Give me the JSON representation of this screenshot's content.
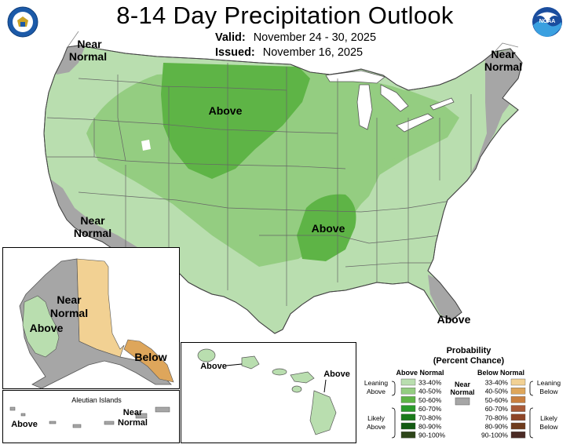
{
  "title": "8-14 Day Precipitation Outlook",
  "valid_label": "Valid:",
  "valid_value": "November 24 - 30, 2025",
  "issued_label": "Issued:",
  "issued_value": "November 16, 2025",
  "agency_logo": "DOC",
  "noaa_logo": "NOAA",
  "map_labels": {
    "nw_near_normal": [
      "Near",
      "Normal"
    ],
    "ne_near_normal": [
      "Near",
      "Normal"
    ],
    "sw_near_normal": [
      "Near",
      "Normal"
    ],
    "above_north": "Above",
    "above_south": "Above",
    "above_florida": "Above",
    "ak_near_normal": [
      "Near",
      "Normal"
    ],
    "ak_above": "Above",
    "ak_below": "Below",
    "aleutian_title": "Aleutian Islands",
    "aleutian_above": "Above",
    "aleutian_near_normal": [
      "Near",
      "Normal"
    ],
    "hawaii_above_left": "Above",
    "hawaii_above_right": "Above"
  },
  "legend": {
    "title": [
      "Probability",
      "(Percent Chance)"
    ],
    "above_header": "Above Normal",
    "below_header": "Below Normal",
    "near_label": [
      "Near",
      "Normal"
    ],
    "leaning_above": [
      "Leaning",
      "Above"
    ],
    "likely_above": [
      "Likely",
      "Above"
    ],
    "leaning_below": [
      "Leaning",
      "Below"
    ],
    "likely_below": [
      "Likely",
      "Below"
    ],
    "above_bins": [
      {
        "label": "33-40%",
        "color": "#b9deaf"
      },
      {
        "label": "40-50%",
        "color": "#94cd81"
      },
      {
        "label": "50-60%",
        "color": "#5eb446"
      },
      {
        "label": "60-70%",
        "color": "#2b9a2b"
      },
      {
        "label": "70-80%",
        "color": "#1b7a1b"
      },
      {
        "label": "80-90%",
        "color": "#125a12"
      },
      {
        "label": "90-100%",
        "color": "#2d4519"
      }
    ],
    "below_bins": [
      {
        "label": "33-40%",
        "color": "#f2d193"
      },
      {
        "label": "40-50%",
        "color": "#dea65b"
      },
      {
        "label": "50-60%",
        "color": "#c97f3f"
      },
      {
        "label": "60-70%",
        "color": "#a85a38"
      },
      {
        "label": "70-80%",
        "color": "#8e4527"
      },
      {
        "label": "80-90%",
        "color": "#6f3b1c"
      },
      {
        "label": "90-100%",
        "color": "#4a2a24"
      }
    ],
    "near_color": "#a6a6a6"
  }
}
